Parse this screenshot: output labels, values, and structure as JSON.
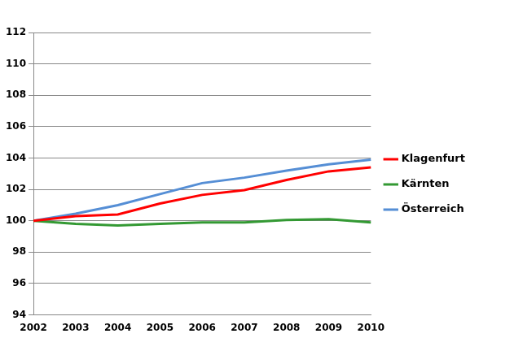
{
  "chart_data": {
    "type": "line",
    "categories": [
      "2002",
      "2003",
      "2004",
      "2005",
      "2006",
      "2007",
      "2008",
      "2009",
      "2010"
    ],
    "series": [
      {
        "name": "Klagenfurt",
        "color": "#ff0000",
        "values": [
          100,
          100.3,
          100.4,
          101.1,
          101.65,
          101.95,
          102.6,
          103.15,
          103.4
        ]
      },
      {
        "name": "Kärnten",
        "color": "#339933",
        "values": [
          100,
          99.8,
          99.7,
          99.8,
          99.9,
          99.9,
          100.05,
          100.1,
          99.9
        ]
      },
      {
        "name": "Österreich",
        "color": "#558ed5",
        "values": [
          100,
          100.45,
          101.0,
          101.7,
          102.4,
          102.75,
          103.2,
          103.6,
          103.9
        ]
      }
    ],
    "ylim": [
      94,
      112
    ],
    "yticks": [
      94,
      96,
      98,
      100,
      102,
      104,
      106,
      108,
      110,
      112
    ],
    "grid": true,
    "legend": "right"
  }
}
